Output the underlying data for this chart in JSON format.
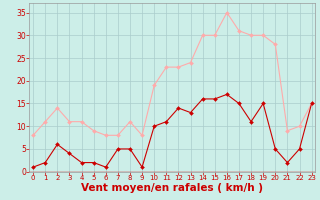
{
  "x": [
    0,
    1,
    2,
    3,
    4,
    5,
    6,
    7,
    8,
    9,
    10,
    11,
    12,
    13,
    14,
    15,
    16,
    17,
    18,
    19,
    20,
    21,
    22,
    23
  ],
  "wind_avg": [
    1,
    2,
    6,
    4,
    2,
    2,
    1,
    5,
    5,
    1,
    10,
    11,
    14,
    13,
    16,
    16,
    17,
    15,
    11,
    15,
    5,
    2,
    5,
    15
  ],
  "wind_gust": [
    8,
    11,
    14,
    11,
    11,
    9,
    8,
    8,
    11,
    8,
    19,
    23,
    23,
    24,
    30,
    30,
    35,
    31,
    30,
    30,
    28,
    9,
    10,
    15
  ],
  "avg_color": "#cc0000",
  "gust_color": "#ffaaaa",
  "background_color": "#cceee8",
  "grid_color": "#aacccc",
  "xlabel": "Vent moyen/en rafales ( km/h )",
  "ylabel_ticks": [
    0,
    5,
    10,
    15,
    20,
    25,
    30,
    35
  ],
  "ylim": [
    0,
    37
  ],
  "xlim": [
    -0.3,
    23.3
  ],
  "tick_color": "#cc0000",
  "label_color": "#cc0000",
  "xlabel_fontsize": 7.5,
  "tick_fontsize": 5.0,
  "ytick_fontsize": 5.5
}
